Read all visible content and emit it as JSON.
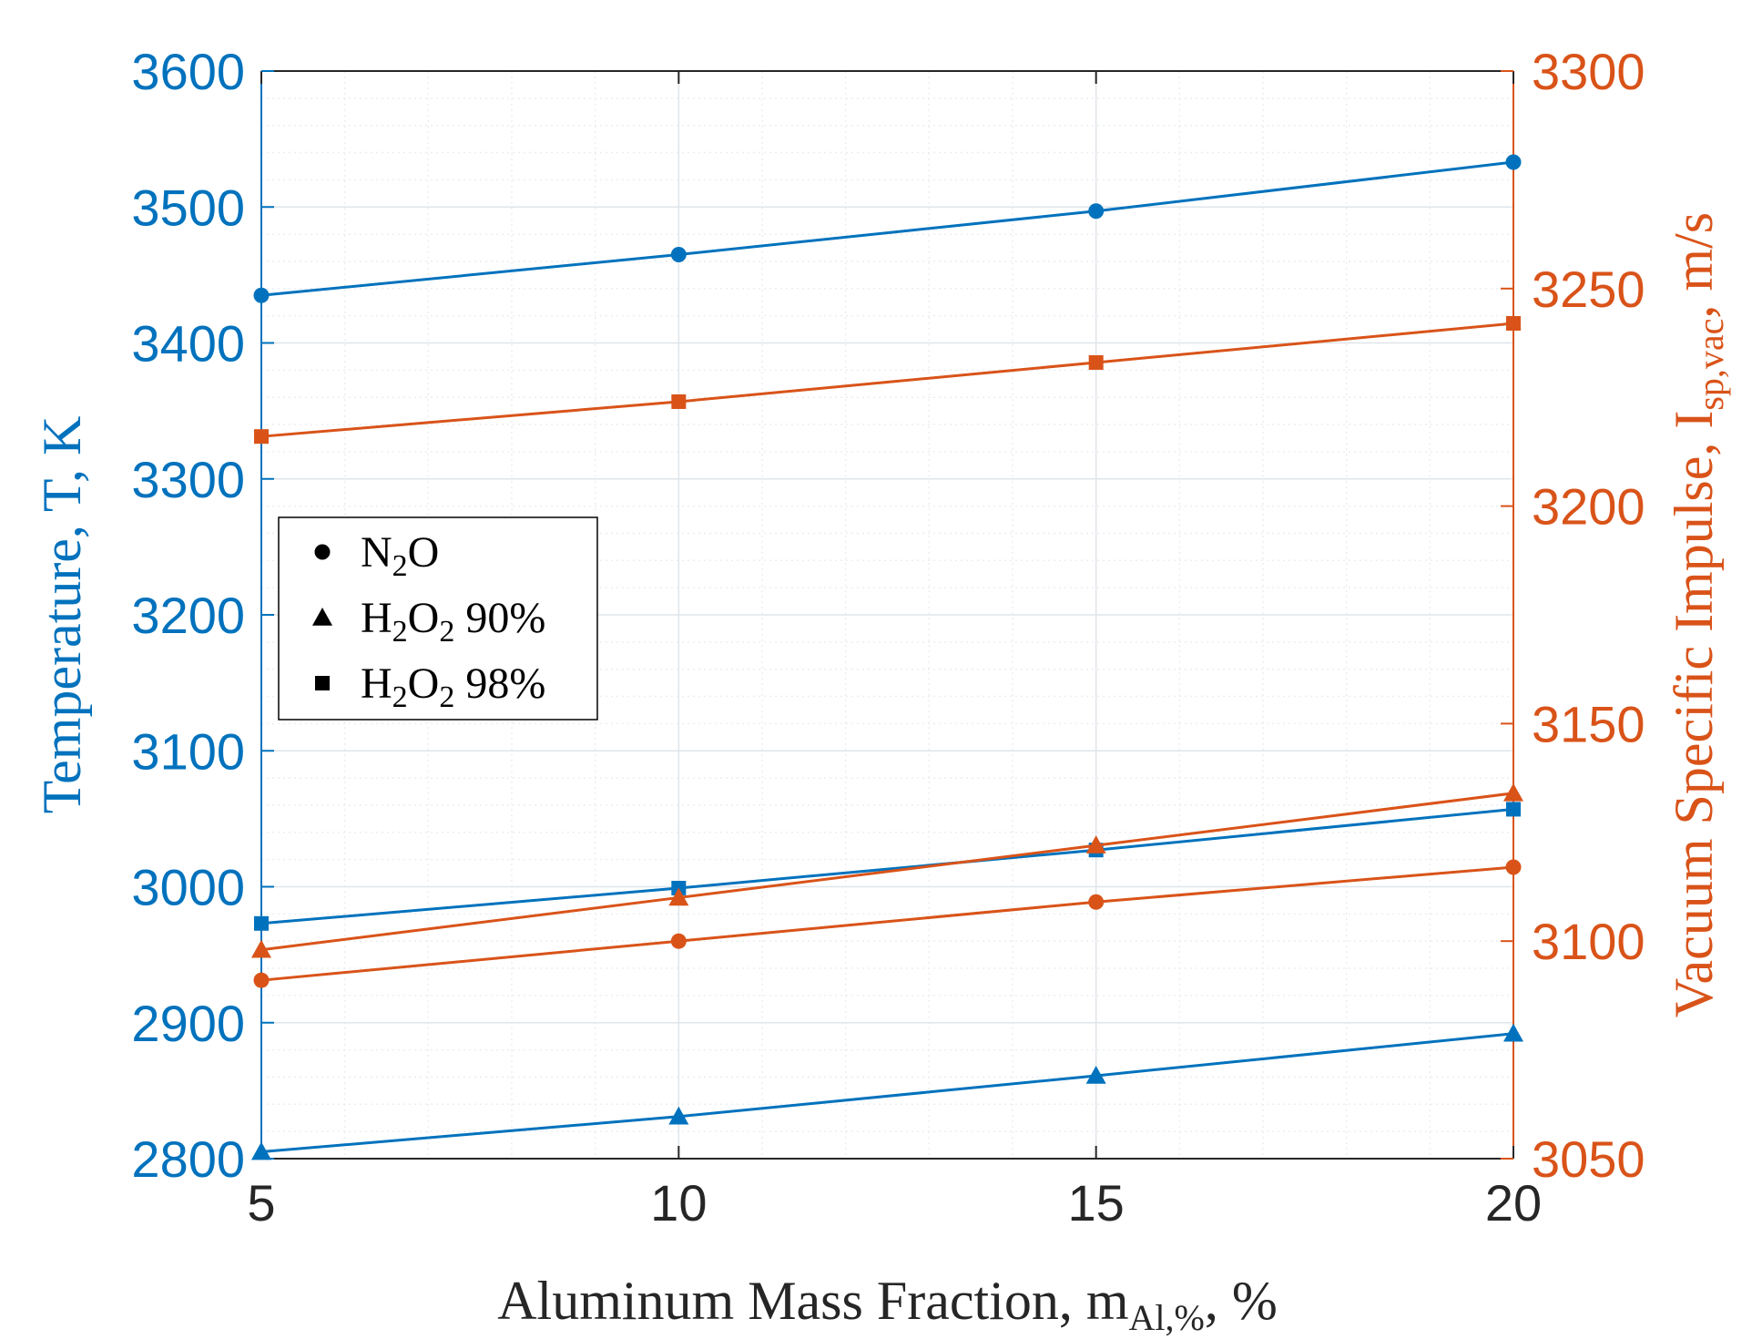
{
  "colors": {
    "temperature": "#0072BD",
    "impulse": "#D95319",
    "axis_x": "#262626",
    "grid": "#DFE5EA",
    "minor_grid": "#EBEEF1",
    "background": "#FFFFFF"
  },
  "legend": {
    "entries": [
      {
        "marker": "circle",
        "base": "N",
        "sub1": "2",
        "mid": "O",
        "sub2": "",
        "tail": ""
      },
      {
        "marker": "triangle",
        "base": "H",
        "sub1": "2",
        "mid": "O",
        "sub2": "2",
        "tail": " 90%"
      },
      {
        "marker": "square",
        "base": "H",
        "sub1": "2",
        "mid": "O",
        "sub2": "2",
        "tail": " 98%"
      }
    ],
    "placement": "middle-left"
  },
  "chart_data": {
    "type": "line",
    "grid": true,
    "minor_grid": true,
    "xlabel": {
      "main": "Aluminum Mass Fraction, m",
      "sub": "Al,%",
      "tail": ", %"
    },
    "ylabel_left": "Temperature, T, K",
    "ylabel_right": {
      "main": "Vacuum Specific Impulse, I",
      "sub": "sp,vac",
      "tail": ", m/s"
    },
    "x": [
      5,
      10,
      15,
      20
    ],
    "xlim": [
      5,
      20
    ],
    "xticks": [
      5,
      10,
      15,
      20
    ],
    "ylim_left": [
      2800,
      3600
    ],
    "yticks_left": [
      2800,
      2900,
      3000,
      3100,
      3200,
      3300,
      3400,
      3500,
      3600
    ],
    "ylim_right": [
      3050,
      3300
    ],
    "yticks_right": [
      3050,
      3100,
      3150,
      3200,
      3250,
      3300
    ],
    "series": [
      {
        "oxidizer": "N2O",
        "quantity": "temperature",
        "axis": "left",
        "marker": "circle",
        "values": [
          3435,
          3465,
          3497,
          3533
        ]
      },
      {
        "oxidizer": "H2O2 90%",
        "quantity": "temperature",
        "axis": "left",
        "marker": "triangle",
        "values": [
          2805,
          2831,
          2861,
          2892
        ]
      },
      {
        "oxidizer": "H2O2 98%",
        "quantity": "temperature",
        "axis": "left",
        "marker": "square",
        "values": [
          2973,
          2999,
          3027,
          3057
        ]
      },
      {
        "oxidizer": "N2O",
        "quantity": "impulse",
        "axis": "right",
        "marker": "circle",
        "values": [
          3091,
          3100,
          3109,
          3117
        ]
      },
      {
        "oxidizer": "H2O2 90%",
        "quantity": "impulse",
        "axis": "right",
        "marker": "triangle",
        "values": [
          3098,
          3110,
          3122,
          3134
        ]
      },
      {
        "oxidizer": "H2O2 98%",
        "quantity": "impulse",
        "axis": "right",
        "marker": "square",
        "values": [
          3216,
          3224,
          3233,
          3242
        ]
      }
    ]
  }
}
